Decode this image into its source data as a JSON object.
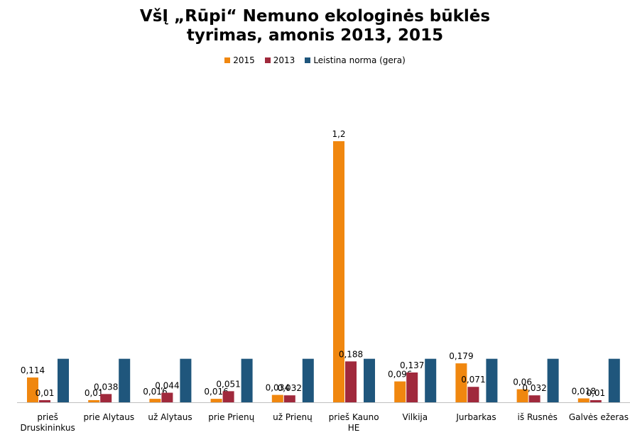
{
  "chart_data": {
    "type": "bar",
    "title_line1": "VšĮ „Rūpi“ Nemuno ekologinės būklės",
    "title_line2": "tyrimas, amonis 2013, 2015",
    "categories": [
      [
        "prieš",
        "Druskininkus"
      ],
      [
        "prie Alytaus"
      ],
      [
        "už Alytaus"
      ],
      [
        "prie Prienų"
      ],
      [
        "už Prienų"
      ],
      [
        "prieš Kauno",
        "HE"
      ],
      [
        "Vilkija"
      ],
      [
        "Jurbarkas"
      ],
      [
        "iš Rusnės"
      ],
      [
        "Galvės ežeras"
      ]
    ],
    "series": [
      {
        "name": "2015",
        "color": "#F0870F",
        "values": [
          0.114,
          0.01,
          0.016,
          0.016,
          0.034,
          1.2,
          0.096,
          0.179,
          0.06,
          0.018
        ],
        "labels": [
          "0,114",
          "0,01",
          "0,016",
          "0,016",
          "0,034",
          "1,2",
          "0,096",
          "0,179",
          "0,06",
          "0,018"
        ]
      },
      {
        "name": "2013",
        "color": "#A0293C",
        "values": [
          0.01,
          0.038,
          0.044,
          0.051,
          0.032,
          0.188,
          0.137,
          0.071,
          0.032,
          0.01
        ],
        "labels": [
          "0,01",
          "0,038",
          "0,044",
          "0,051",
          "0,032",
          "0,188",
          "0,137",
          "0,071",
          "0,032",
          "0,01"
        ]
      },
      {
        "name": "Leistina norma (gera)",
        "color": "#1F567C",
        "values": [
          0.2,
          0.2,
          0.2,
          0.2,
          0.2,
          0.2,
          0.2,
          0.2,
          0.2,
          0.2
        ],
        "labels": []
      }
    ],
    "ylim": [
      0,
      1.2
    ],
    "grid": false,
    "legend_position": "top"
  }
}
